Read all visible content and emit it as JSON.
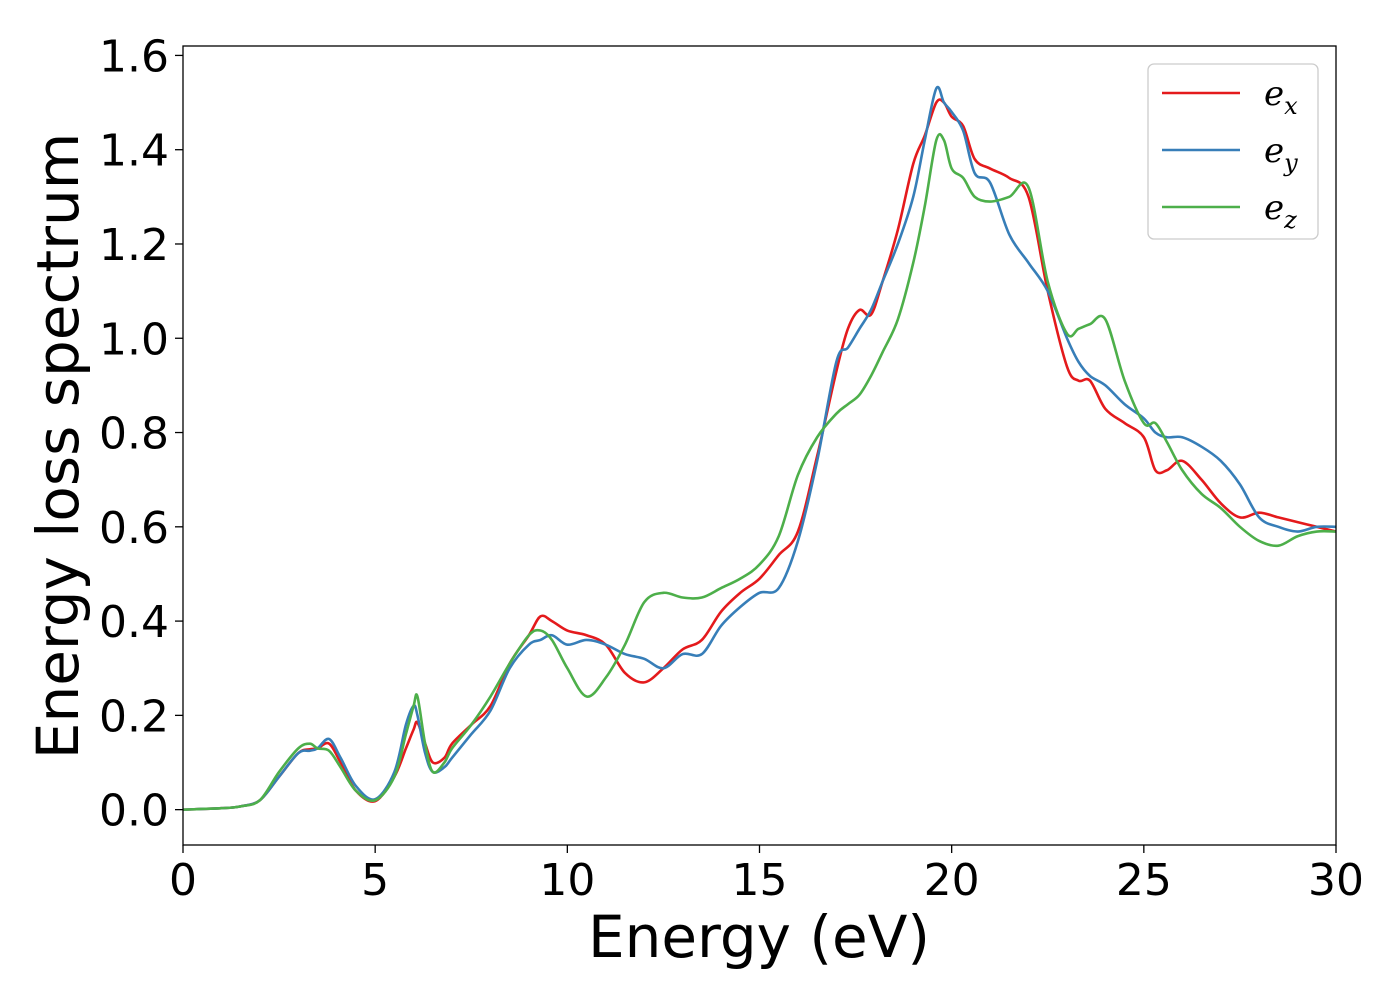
{
  "chart_data": {
    "type": "line",
    "title": "",
    "xlabel": "Energy (eV)",
    "ylabel": "Energy loss spectrum",
    "xlim": [
      0,
      30
    ],
    "ylim": [
      -0.075,
      1.62
    ],
    "xticks": [
      "0",
      "5",
      "10",
      "15",
      "20",
      "25",
      "30"
    ],
    "yticks": [
      "0.0",
      "0.2",
      "0.4",
      "0.6",
      "0.8",
      "1.0",
      "1.2",
      "1.4",
      "1.6"
    ],
    "grid": false,
    "legend_position": "top-right",
    "series": [
      {
        "name": "e",
        "subscript": "x",
        "color": "#e41a1c",
        "x": [
          0,
          1,
          1.5,
          2,
          2.5,
          3,
          3.3,
          3.5,
          3.8,
          4.1,
          4.5,
          5,
          5.5,
          5.8,
          6,
          6.1,
          6.3,
          6.5,
          6.8,
          7,
          7.5,
          8,
          8.5,
          9,
          9.3,
          9.6,
          10,
          10.5,
          11,
          11.5,
          12,
          12.5,
          13,
          13.5,
          14,
          14.5,
          15,
          15.5,
          16,
          16.5,
          17,
          17.3,
          17.6,
          17.9,
          18.2,
          18.6,
          19,
          19.3,
          19.6,
          19.8,
          20,
          20.3,
          20.6,
          21,
          21.5,
          22,
          22.5,
          23,
          23.3,
          23.6,
          24,
          24.5,
          25,
          25.3,
          25.6,
          26,
          26.5,
          27,
          27.5,
          28,
          28.5,
          29,
          29.5,
          30
        ],
        "y": [
          0,
          0.003,
          0.007,
          0.02,
          0.07,
          0.12,
          0.128,
          0.13,
          0.14,
          0.1,
          0.04,
          0.018,
          0.07,
          0.13,
          0.17,
          0.185,
          0.14,
          0.1,
          0.11,
          0.14,
          0.18,
          0.22,
          0.31,
          0.37,
          0.41,
          0.4,
          0.38,
          0.37,
          0.35,
          0.29,
          0.27,
          0.3,
          0.34,
          0.36,
          0.42,
          0.46,
          0.49,
          0.54,
          0.59,
          0.75,
          0.93,
          1.02,
          1.06,
          1.05,
          1.12,
          1.23,
          1.37,
          1.43,
          1.5,
          1.5,
          1.47,
          1.45,
          1.38,
          1.36,
          1.34,
          1.3,
          1.1,
          0.94,
          0.91,
          0.91,
          0.85,
          0.82,
          0.79,
          0.72,
          0.72,
          0.74,
          0.7,
          0.65,
          0.62,
          0.63,
          0.62,
          0.61,
          0.6,
          0.59
        ]
      },
      {
        "name": "e",
        "subscript": "y",
        "color": "#377eb8",
        "x": [
          0,
          1,
          1.5,
          2,
          2.5,
          3,
          3.3,
          3.5,
          3.8,
          4.1,
          4.5,
          5,
          5.5,
          5.8,
          6,
          6.1,
          6.3,
          6.5,
          6.8,
          7,
          7.5,
          8,
          8.5,
          9,
          9.3,
          9.6,
          10,
          10.5,
          11,
          11.5,
          12,
          12.5,
          13,
          13.5,
          14,
          14.5,
          15,
          15.5,
          16,
          16.5,
          17,
          17.3,
          17.6,
          17.9,
          18.2,
          18.6,
          19,
          19.3,
          19.6,
          19.8,
          20,
          20.3,
          20.6,
          21,
          21.5,
          22,
          22.5,
          23,
          23.3,
          23.6,
          24,
          24.5,
          25,
          25.3,
          25.6,
          26,
          26.5,
          27,
          27.5,
          28,
          28.5,
          29,
          29.5,
          30
        ],
        "y": [
          0,
          0.003,
          0.007,
          0.02,
          0.07,
          0.12,
          0.125,
          0.13,
          0.15,
          0.11,
          0.05,
          0.022,
          0.08,
          0.18,
          0.22,
          0.2,
          0.12,
          0.08,
          0.09,
          0.11,
          0.16,
          0.21,
          0.3,
          0.35,
          0.36,
          0.37,
          0.35,
          0.36,
          0.35,
          0.33,
          0.32,
          0.3,
          0.33,
          0.33,
          0.39,
          0.43,
          0.46,
          0.47,
          0.57,
          0.74,
          0.95,
          0.98,
          1.02,
          1.06,
          1.12,
          1.2,
          1.3,
          1.42,
          1.53,
          1.5,
          1.48,
          1.44,
          1.35,
          1.33,
          1.22,
          1.16,
          1.1,
          1.0,
          0.95,
          0.92,
          0.9,
          0.86,
          0.83,
          0.8,
          0.79,
          0.79,
          0.77,
          0.74,
          0.69,
          0.62,
          0.6,
          0.59,
          0.6,
          0.6
        ]
      },
      {
        "name": "e",
        "subscript": "z",
        "color": "#4daf4a",
        "x": [
          0,
          1,
          1.5,
          2,
          2.5,
          3,
          3.3,
          3.5,
          3.8,
          4.1,
          4.5,
          5,
          5.5,
          5.8,
          6,
          6.1,
          6.3,
          6.5,
          6.8,
          7,
          7.5,
          8,
          8.5,
          9,
          9.3,
          9.6,
          10,
          10.5,
          11,
          11.5,
          12,
          12.5,
          13,
          13.5,
          14,
          14.5,
          15,
          15.5,
          16,
          16.5,
          17,
          17.3,
          17.6,
          17.9,
          18.2,
          18.6,
          19,
          19.3,
          19.6,
          19.8,
          20,
          20.3,
          20.6,
          21,
          21.5,
          22,
          22.5,
          23,
          23.3,
          23.6,
          24,
          24.5,
          25,
          25.3,
          25.6,
          26,
          26.5,
          27,
          27.5,
          28,
          28.5,
          29,
          29.5,
          30
        ],
        "y": [
          0,
          0.003,
          0.007,
          0.02,
          0.08,
          0.13,
          0.14,
          0.13,
          0.125,
          0.09,
          0.04,
          0.02,
          0.07,
          0.16,
          0.22,
          0.24,
          0.14,
          0.08,
          0.1,
          0.13,
          0.18,
          0.24,
          0.31,
          0.37,
          0.38,
          0.36,
          0.3,
          0.24,
          0.28,
          0.35,
          0.44,
          0.46,
          0.45,
          0.45,
          0.47,
          0.49,
          0.52,
          0.58,
          0.71,
          0.79,
          0.84,
          0.86,
          0.88,
          0.92,
          0.97,
          1.04,
          1.16,
          1.28,
          1.42,
          1.42,
          1.36,
          1.34,
          1.3,
          1.29,
          1.3,
          1.32,
          1.12,
          1.01,
          1.02,
          1.03,
          1.04,
          0.91,
          0.82,
          0.82,
          0.78,
          0.72,
          0.67,
          0.64,
          0.6,
          0.57,
          0.56,
          0.58,
          0.59,
          0.59
        ]
      }
    ]
  }
}
